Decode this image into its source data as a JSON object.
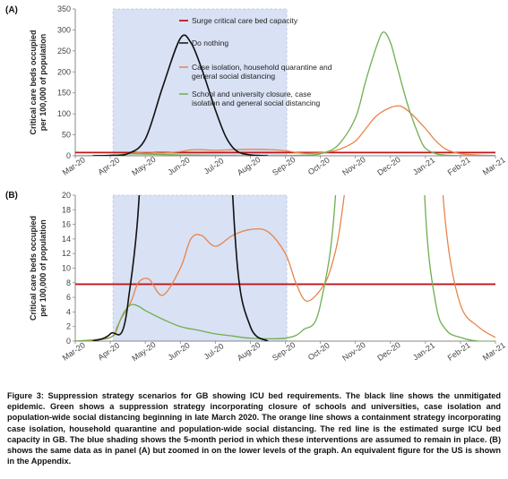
{
  "caption": "Figure 3: Suppression strategy scenarios for GB showing ICU bed requirements. The black line shows the unmitigated epidemic. Green shows a suppression strategy incorporating closure of schools and universities, case isolation and population-wide social distancing beginning in late March 2020. The orange line shows a containment strategy incorporating case isolation, household quarantine and population-wide social distancing. The red line is the estimated surge ICU bed capacity in GB. The blue shading shows the 5-month period in which these interventions are assumed to remain in place. (B) shows the same data as in panel (A) but zoomed in on the lower levels of the graph. An equivalent figure for the US is shown in the Appendix.",
  "colors": {
    "do_nothing": "#111111",
    "containment": "#e8844a",
    "suppression": "#6fae4f",
    "capacity": "#c0161b",
    "shading": "#d9e1f4"
  },
  "chart_data": [
    {
      "panel": "(A)",
      "type": "line",
      "ylabel": "Critical care beds occupied per 100,000 of population",
      "x_categories": [
        "Mar-20",
        "Apr-20",
        "May-20",
        "Jun-20",
        "Jul-20",
        "Aug-20",
        "Sep-20",
        "Oct-20",
        "Nov-20",
        "Dec-20",
        "Jan-21",
        "Feb-21",
        "Mar-21"
      ],
      "ylim": [
        0,
        350
      ],
      "yticks": [
        0,
        50,
        100,
        150,
        200,
        250,
        300,
        350
      ],
      "grid": false,
      "legend_placement": "top-center",
      "shaded_period": [
        "Apr-20",
        "Sep-20"
      ],
      "hline": {
        "name": "Surge critical care bed capacity",
        "y": 7.8
      },
      "series": [
        {
          "name": "Do nothing",
          "key": "do_nothing",
          "x": [
            0.5,
            1.0,
            1.5,
            2.0,
            2.5,
            3.0,
            3.3,
            3.6,
            4.0,
            4.3,
            4.6,
            5.0,
            5.5
          ],
          "y": [
            0,
            1,
            5,
            40,
            165,
            280,
            270,
            210,
            110,
            45,
            12,
            2,
            0
          ]
        },
        {
          "name": "Case isolation, household quarantine and general social distancing",
          "key": "containment",
          "x": [
            0,
            1.0,
            1.3,
            1.6,
            1.8,
            2.1,
            2.5,
            3.0,
            3.3,
            3.6,
            4.0,
            4.5,
            5.0,
            5.5,
            6.0,
            6.3,
            6.6,
            7.0,
            7.3,
            7.6,
            8.0,
            8.3,
            8.6,
            9.0,
            9.3,
            9.6,
            10.0,
            10.3,
            10.6,
            11.0,
            11.5,
            12.0
          ],
          "y": [
            0,
            0.5,
            3,
            5.5,
            8,
            8.5,
            6.3,
            10,
            14,
            14.5,
            13,
            14.5,
            15.3,
            15,
            12,
            8,
            5.5,
            7,
            10,
            17,
            35,
            65,
            95,
            115,
            118,
            100,
            65,
            35,
            15,
            5,
            2,
            0.5
          ]
        },
        {
          "name": "School and university closure, case isolation and general social distancing",
          "key": "suppression",
          "x": [
            0,
            1.0,
            1.2,
            1.4,
            1.6,
            1.8,
            2.0,
            2.5,
            3.0,
            3.5,
            4.0,
            4.5,
            5.0,
            6.0,
            6.5,
            7.0,
            7.5,
            8.0,
            8.3,
            8.6,
            8.8,
            9.0,
            9.2,
            9.5,
            9.8,
            10.0,
            10.3,
            10.6,
            11.0,
            11.5,
            12.0
          ],
          "y": [
            0,
            0.5,
            2,
            4,
            5,
            4.8,
            4.2,
            3,
            2,
            1.5,
            1,
            0.7,
            0.4,
            0.4,
            1.5,
            5,
            25,
            90,
            180,
            260,
            295,
            270,
            210,
            120,
            50,
            18,
            5,
            1.5,
            0.5,
            0,
            0
          ]
        }
      ]
    },
    {
      "panel": "(B)",
      "type": "line",
      "ylabel": "Critical care beds occupied per 100,000 of population",
      "x_categories": [
        "Mar-20",
        "Apr-20",
        "May-20",
        "Jun-20",
        "Jul-20",
        "Aug-20",
        "Sep-20",
        "Oct-20",
        "Nov-20",
        "Dec-20",
        "Jan-21",
        "Feb-21",
        "Mar-21"
      ],
      "ylim": [
        0,
        20
      ],
      "yticks": [
        0,
        2,
        4,
        6,
        8,
        10,
        12,
        14,
        16,
        18,
        20
      ],
      "grid": false,
      "shaded_period": [
        "Apr-20",
        "Sep-20"
      ],
      "hline": {
        "name": "Surge critical care bed capacity",
        "y": 7.8
      },
      "series_ref": "same data as panel (A), zoomed"
    }
  ]
}
